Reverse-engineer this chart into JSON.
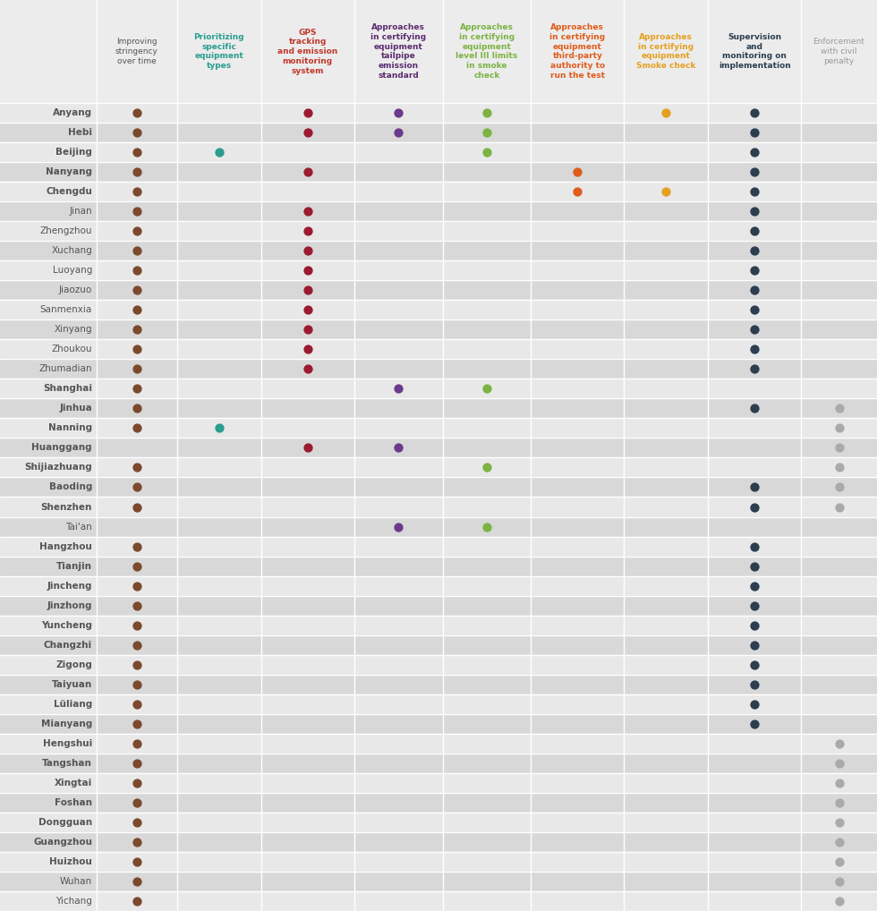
{
  "cities": [
    "Anyang",
    "Hebi",
    "Beijing",
    "Nanyang",
    "Chengdu",
    "Jinan",
    "Zhengzhou",
    "Xuchang",
    "Luoyang",
    "Jiaozuo",
    "Sanmenxia",
    "Xinyang",
    "Zhoukou",
    "Zhumadian",
    "Shanghai",
    "Jinhua",
    "Nanning",
    "Huanggang",
    "Shijiazhuang",
    "Baoding",
    "Shenzhen",
    "Tai'an",
    "Hangzhou",
    "Tianjin",
    "Jincheng",
    "Jinzhong",
    "Yuncheng",
    "Changzhi",
    "Zigong",
    "Taiyuan",
    "Lüliang",
    "Mianyang",
    "Hengshui",
    "Tangshan",
    "Xingtai",
    "Foshan",
    "Dongguan",
    "Guangzhou",
    "Huizhou",
    "Wuhan",
    "Yichang"
  ],
  "dot_data": {
    "Anyang": [
      1,
      0,
      1,
      1,
      1,
      0,
      1,
      1,
      0
    ],
    "Hebi": [
      1,
      0,
      1,
      1,
      1,
      0,
      0,
      1,
      0
    ],
    "Beijing": [
      1,
      1,
      0,
      0,
      1,
      0,
      0,
      1,
      0
    ],
    "Nanyang": [
      1,
      0,
      1,
      0,
      0,
      1,
      0,
      1,
      0
    ],
    "Chengdu": [
      1,
      0,
      0,
      0,
      0,
      1,
      1,
      1,
      0
    ],
    "Jinan": [
      1,
      0,
      1,
      0,
      0,
      0,
      0,
      1,
      0
    ],
    "Zhengzhou": [
      1,
      0,
      1,
      0,
      0,
      0,
      0,
      1,
      0
    ],
    "Xuchang": [
      1,
      0,
      1,
      0,
      0,
      0,
      0,
      1,
      0
    ],
    "Luoyang": [
      1,
      0,
      1,
      0,
      0,
      0,
      0,
      1,
      0
    ],
    "Jiaozuo": [
      1,
      0,
      1,
      0,
      0,
      0,
      0,
      1,
      0
    ],
    "Sanmenxia": [
      1,
      0,
      1,
      0,
      0,
      0,
      0,
      1,
      0
    ],
    "Xinyang": [
      1,
      0,
      1,
      0,
      0,
      0,
      0,
      1,
      0
    ],
    "Zhoukou": [
      1,
      0,
      1,
      0,
      0,
      0,
      0,
      1,
      0
    ],
    "Zhumadian": [
      1,
      0,
      1,
      0,
      0,
      0,
      0,
      1,
      0
    ],
    "Shanghai": [
      1,
      0,
      0,
      1,
      1,
      0,
      0,
      0,
      0
    ],
    "Jinhua": [
      1,
      0,
      0,
      0,
      0,
      0,
      0,
      1,
      1
    ],
    "Nanning": [
      1,
      1,
      0,
      0,
      0,
      0,
      0,
      0,
      1
    ],
    "Huanggang": [
      0,
      0,
      1,
      1,
      0,
      0,
      0,
      0,
      1
    ],
    "Shijiazhuang": [
      1,
      0,
      0,
      0,
      1,
      0,
      0,
      0,
      1
    ],
    "Baoding": [
      1,
      0,
      0,
      0,
      0,
      0,
      0,
      1,
      1
    ],
    "Shenzhen": [
      1,
      0,
      0,
      0,
      0,
      0,
      0,
      1,
      1
    ],
    "Tai'an": [
      0,
      0,
      0,
      1,
      1,
      0,
      0,
      0,
      0
    ],
    "Hangzhou": [
      1,
      0,
      0,
      0,
      0,
      0,
      0,
      1,
      0
    ],
    "Tianjin": [
      1,
      0,
      0,
      0,
      0,
      0,
      0,
      1,
      0
    ],
    "Jincheng": [
      1,
      0,
      0,
      0,
      0,
      0,
      0,
      1,
      0
    ],
    "Jinzhong": [
      1,
      0,
      0,
      0,
      0,
      0,
      0,
      1,
      0
    ],
    "Yuncheng": [
      1,
      0,
      0,
      0,
      0,
      0,
      0,
      1,
      0
    ],
    "Changzhi": [
      1,
      0,
      0,
      0,
      0,
      0,
      0,
      1,
      0
    ],
    "Zigong": [
      1,
      0,
      0,
      0,
      0,
      0,
      0,
      1,
      0
    ],
    "Taiyuan": [
      1,
      0,
      0,
      0,
      0,
      0,
      0,
      1,
      0
    ],
    "Lüliang": [
      1,
      0,
      0,
      0,
      0,
      0,
      0,
      1,
      0
    ],
    "Mianyang": [
      1,
      0,
      0,
      0,
      0,
      0,
      0,
      1,
      0
    ],
    "Hengshui": [
      1,
      0,
      0,
      0,
      0,
      0,
      0,
      0,
      1
    ],
    "Tangshan": [
      1,
      0,
      0,
      0,
      0,
      0,
      0,
      0,
      1
    ],
    "Xingtai": [
      1,
      0,
      0,
      0,
      0,
      0,
      0,
      0,
      1
    ],
    "Foshan": [
      1,
      0,
      0,
      0,
      0,
      0,
      0,
      0,
      1
    ],
    "Dongguan": [
      1,
      0,
      0,
      0,
      0,
      0,
      0,
      0,
      1
    ],
    "Guangzhou": [
      1,
      0,
      0,
      0,
      0,
      0,
      0,
      0,
      1
    ],
    "Huizhou": [
      1,
      0,
      0,
      0,
      0,
      0,
      0,
      0,
      1
    ],
    "Wuhan": [
      1,
      0,
      0,
      0,
      0,
      0,
      0,
      0,
      1
    ],
    "Yichang": [
      1,
      0,
      0,
      0,
      0,
      0,
      0,
      0,
      1
    ]
  },
  "dot_colors": [
    "#7b4a2d",
    "#2a9d8f",
    "#9b1b30",
    "#6b3a8a",
    "#7cb342",
    "#e05c1b",
    "#e5a020",
    "#2c3e50",
    "#aaaaaa"
  ],
  "col_header_texts": [
    "Improving\nstringency\nover time",
    "Prioritizing\nspecific\nequipment\ntypes",
    "GPS\ntracking\nand emission\nmonitoring\nsystem",
    "Approaches\nin certifying\nequipment\ntailpipe\nemission\nstandard",
    "Approaches\nin certifying\nequipment\nlevel III limits\nin smoke\ncheck",
    "Approaches\nin certifying\nequipment\nthird-party\nauthority to\nrun the test",
    "Approaches\nin certifying\nequipment\nSmoke check",
    "Supervision\nand\nmonitoring on\nimplementation",
    "Enforcement\nwith civil\npenalty"
  ],
  "col_header_colors": [
    "#555555",
    "#2a9d8f",
    "#c0392b",
    "#5b2c6f",
    "#7cb342",
    "#e05c1b",
    "#e5a020",
    "#2c3e50",
    "#999999"
  ],
  "col_header_bold": [
    false,
    true,
    true,
    true,
    true,
    true,
    true,
    true,
    false
  ],
  "row_bg_even": "#e8e8e8",
  "row_bg_odd": "#d8d8d8",
  "header_bg": "#ececec",
  "white_line": "#ffffff",
  "city_label_color": "#555555",
  "city_bold_list": [
    "Anyang",
    "Hebi",
    "Beijing",
    "Nanyang",
    "Chengdu",
    "Shanghai",
    "Jinhua",
    "Nanning",
    "Huanggang",
    "Shijiazhuang",
    "Baoding",
    "Shenzhen",
    "Hangzhou",
    "Tianjin",
    "Jincheng",
    "Jinzhong",
    "Yuncheng",
    "Changzhi",
    "Zigong",
    "Taiyuan",
    "Lüliang",
    "Mianyang",
    "Hengshui",
    "Tangshan",
    "Xingtai",
    "Foshan",
    "Dongguan",
    "Guangzhou",
    "Huizhou"
  ]
}
